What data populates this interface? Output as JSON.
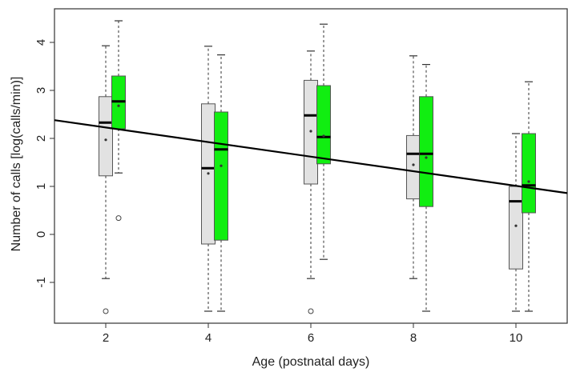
{
  "chart_data": {
    "type": "boxplot",
    "xlabel": "Age (postnatal days)",
    "ylabel": "Number of calls [log(calls/min)]",
    "xlim": [
      1.0,
      11.0
    ],
    "ylim": [
      -1.85,
      4.7
    ],
    "x_ticks": [
      2,
      4,
      6,
      8,
      10
    ],
    "x_tick_labels": [
      "2",
      "4",
      "6",
      "8",
      "10"
    ],
    "y_ticks": [
      -1,
      0,
      1,
      2,
      3,
      4
    ],
    "y_tick_labels": [
      "-1",
      "0",
      "1",
      "2",
      "3",
      "4"
    ],
    "grid": false,
    "legend": "none",
    "colors": {
      "grey_series": "#e2e2e2",
      "green_series": "#11ee11",
      "regression": "#000000"
    },
    "series": [
      {
        "color": "#e2e2e2",
        "boxes": [
          {
            "x": 2,
            "whisker_low": -0.92,
            "q1": 1.22,
            "median": 2.33,
            "q3": 2.87,
            "whisker_high": 3.93,
            "mean": 1.97,
            "outliers": [
              -1.6
            ]
          },
          {
            "x": 4,
            "whisker_low": -1.6,
            "q1": -0.2,
            "median": 1.38,
            "q3": 2.72,
            "whisker_high": 3.92,
            "mean": 1.27,
            "outliers": []
          },
          {
            "x": 6,
            "whisker_low": -0.92,
            "q1": 1.05,
            "median": 2.48,
            "q3": 3.21,
            "whisker_high": 3.82,
            "mean": 2.15,
            "outliers": [
              -1.6
            ]
          },
          {
            "x": 8,
            "whisker_low": -0.92,
            "q1": 0.74,
            "median": 1.68,
            "q3": 2.06,
            "whisker_high": 3.72,
            "mean": 1.45,
            "outliers": []
          },
          {
            "x": 10,
            "whisker_low": -1.6,
            "q1": -0.72,
            "median": 0.69,
            "q3": 1.0,
            "whisker_high": 2.1,
            "mean": 0.18,
            "outliers": []
          }
        ]
      },
      {
        "color": "#11ee11",
        "boxes": [
          {
            "x": 2.25,
            "whisker_low": 1.28,
            "q1": 2.2,
            "median": 2.77,
            "q3": 3.3,
            "whisker_high": 4.45,
            "mean": 2.68,
            "outliers": [
              0.34
            ]
          },
          {
            "x": 4.25,
            "whisker_low": -1.6,
            "q1": -0.12,
            "median": 1.77,
            "q3": 2.55,
            "whisker_high": 3.74,
            "mean": 1.43,
            "outliers": []
          },
          {
            "x": 6.25,
            "whisker_low": -0.52,
            "q1": 1.47,
            "median": 2.03,
            "q3": 3.1,
            "whisker_high": 4.38,
            "mean": 2.05,
            "outliers": []
          },
          {
            "x": 8.25,
            "whisker_low": -1.6,
            "q1": 0.58,
            "median": 1.68,
            "q3": 2.87,
            "whisker_high": 3.54,
            "mean": 1.6,
            "outliers": []
          },
          {
            "x": 10.25,
            "whisker_low": -1.6,
            "q1": 0.45,
            "median": 1.02,
            "q3": 2.1,
            "whisker_high": 3.18,
            "mean": 1.1,
            "outliers": []
          }
        ]
      }
    ],
    "regression_line": {
      "x": [
        1.0,
        11.0
      ],
      "y": [
        2.38,
        0.86
      ]
    }
  }
}
